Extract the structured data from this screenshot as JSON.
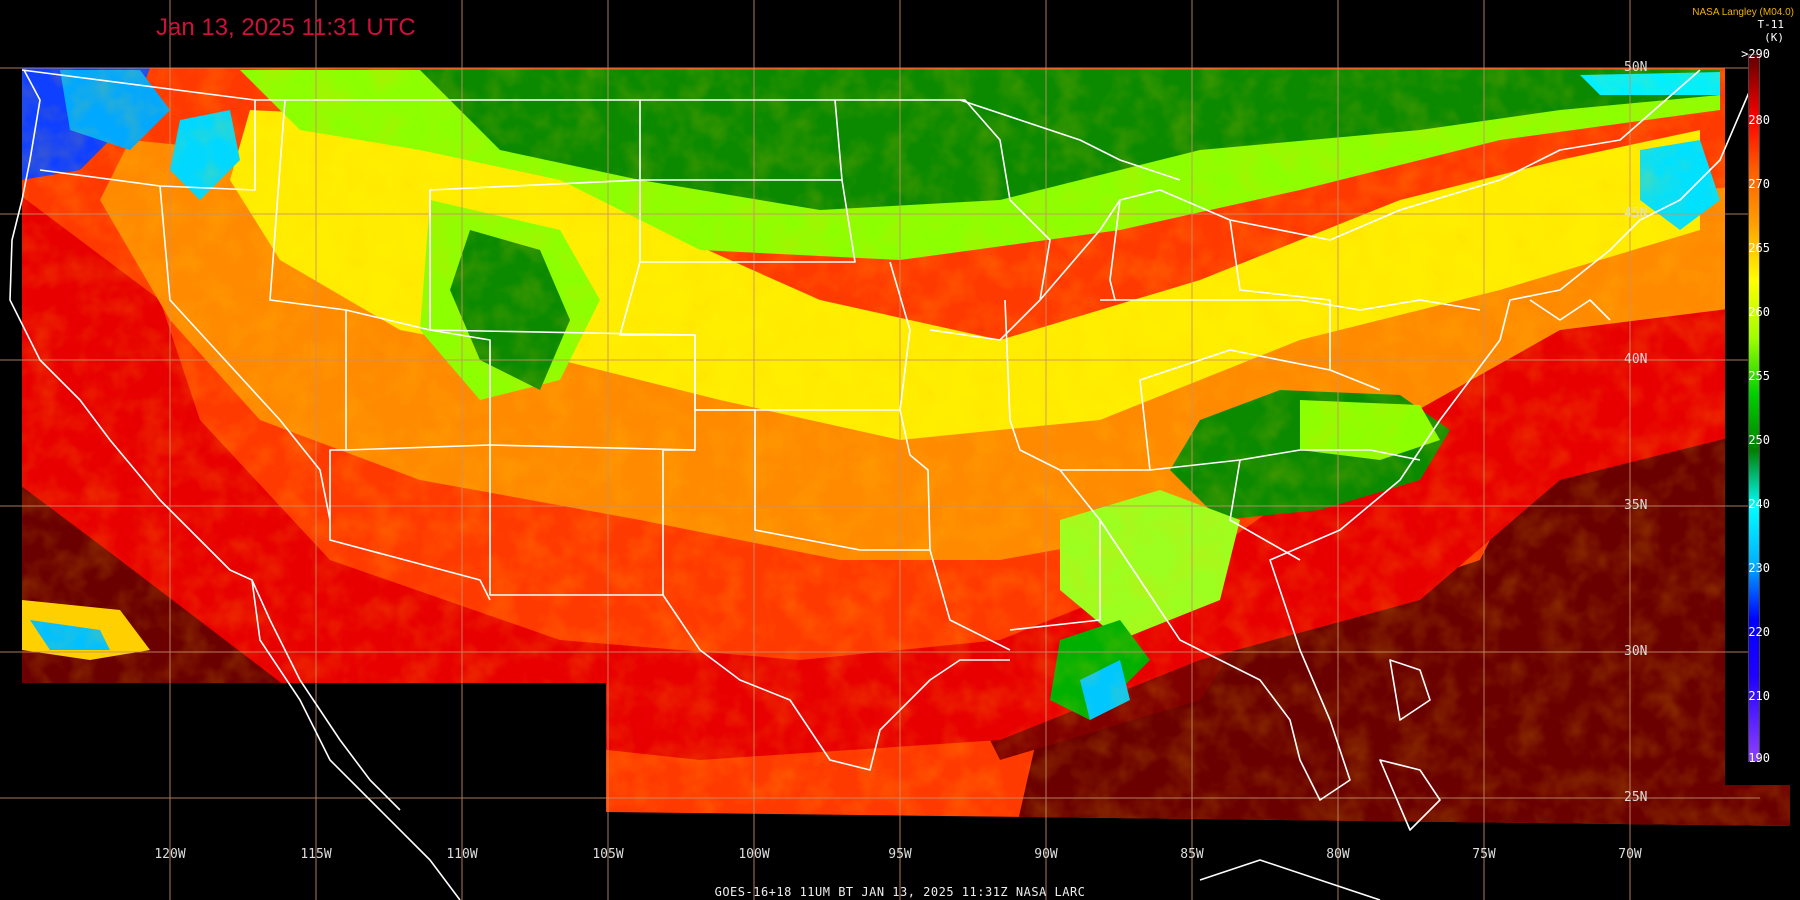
{
  "header": {
    "timestamp": "Jan 13, 2025 11:31 UTC",
    "credit": "NASA Langley (M04.0)"
  },
  "colorbar": {
    "product": "T-11",
    "unit": "(K)",
    "labels": [
      ">290",
      "280",
      "270",
      "265",
      "260",
      "255",
      "250",
      "240",
      "230",
      "220",
      "210",
      "190"
    ],
    "colors": [
      "#fff",
      "#ff0000",
      "#ff6600",
      "#ffaa00",
      "#ffff00",
      "#a0ff00",
      "#00c000",
      "#008000",
      "#00ffff",
      "#00a0ff",
      "#0000ff",
      "#9040ff",
      "#600000"
    ]
  },
  "grid": {
    "longitude_labels": [
      "120W",
      "115W",
      "110W",
      "105W",
      "100W",
      "95W",
      "90W",
      "85W",
      "80W",
      "75W",
      "70W"
    ],
    "latitude_labels": [
      "50N",
      "45N",
      "40N",
      "35N",
      "30N",
      "25N"
    ]
  },
  "footer": {
    "caption": "GOES-16+18  11UM BT   JAN 13, 2025 11:31Z   NASA LARC"
  },
  "colors": {
    "background": "#000000",
    "title": "#d0103a",
    "credit": "#f0b000",
    "grid": "#c8906a",
    "borders": "#ffffff"
  }
}
